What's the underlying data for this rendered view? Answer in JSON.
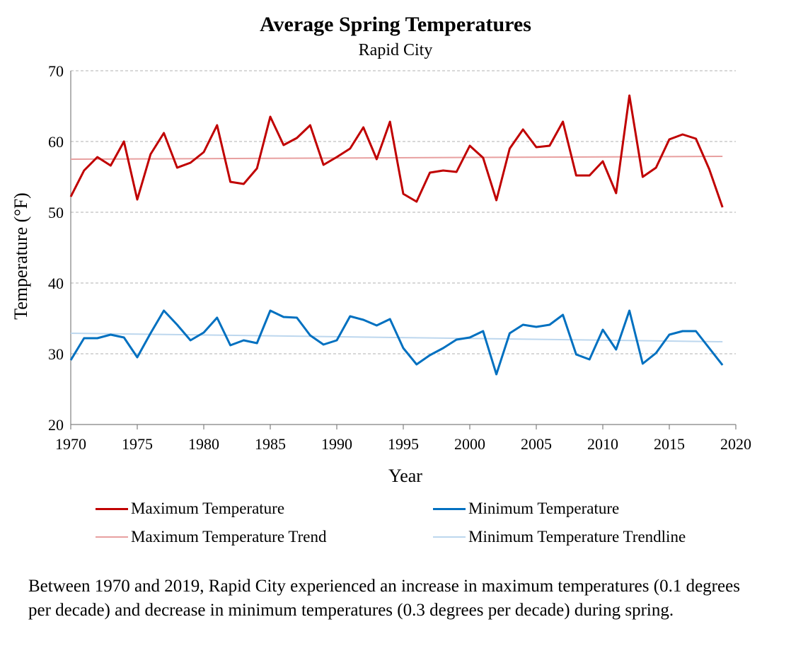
{
  "chart_data": {
    "type": "line",
    "title": "Average Spring Temperatures",
    "subtitle": "Rapid City",
    "xlabel": "Year",
    "ylabel": "Temperature (°F)",
    "xlim": [
      1970,
      2020
    ],
    "ylim": [
      20,
      70
    ],
    "x_ticks": [
      1970,
      1975,
      1980,
      1985,
      1990,
      1995,
      2000,
      2005,
      2010,
      2015,
      2020
    ],
    "y_ticks": [
      20,
      30,
      40,
      50,
      60,
      70
    ],
    "grid": "horizontal dashed",
    "legend_position": "bottom",
    "x": [
      1970,
      1971,
      1972,
      1973,
      1974,
      1975,
      1976,
      1977,
      1978,
      1979,
      1980,
      1981,
      1982,
      1983,
      1984,
      1985,
      1986,
      1987,
      1988,
      1989,
      1990,
      1991,
      1992,
      1993,
      1994,
      1995,
      1996,
      1997,
      1998,
      1999,
      2000,
      2001,
      2002,
      2003,
      2004,
      2005,
      2006,
      2007,
      2008,
      2009,
      2010,
      2011,
      2012,
      2013,
      2014,
      2015,
      2016,
      2017,
      2018,
      2019
    ],
    "series": [
      {
        "name": "Maximum Temperature",
        "color": "#c00000",
        "width": 3,
        "values": [
          52.2,
          55.9,
          57.8,
          56.6,
          60.0,
          51.8,
          58.2,
          61.2,
          56.3,
          57.0,
          58.5,
          62.3,
          54.3,
          54.0,
          56.2,
          63.5,
          59.5,
          60.5,
          62.3,
          56.7,
          57.8,
          59.0,
          62.0,
          57.5,
          62.8,
          52.6,
          51.5,
          55.6,
          55.9,
          55.7,
          59.4,
          57.7,
          51.7,
          59.0,
          61.7,
          59.2,
          59.4,
          62.8,
          55.2,
          55.2,
          57.2,
          52.7,
          66.5,
          55.0,
          56.3,
          60.3,
          61.0,
          60.4,
          56.1,
          50.7
        ]
      },
      {
        "name": "Minimum Temperature",
        "color": "#0070c0",
        "width": 3,
        "values": [
          29.1,
          32.2,
          32.2,
          32.7,
          32.3,
          29.5,
          32.9,
          36.1,
          34.1,
          31.9,
          33.0,
          35.1,
          31.2,
          31.9,
          31.5,
          36.1,
          35.2,
          35.1,
          32.6,
          31.3,
          31.9,
          35.3,
          34.8,
          34.0,
          34.9,
          30.8,
          28.5,
          29.8,
          30.8,
          32.0,
          32.3,
          33.2,
          27.1,
          32.9,
          34.1,
          33.8,
          34.1,
          35.5,
          29.9,
          29.2,
          33.4,
          30.6,
          36.1,
          28.6,
          30.1,
          32.7,
          33.2,
          33.2,
          30.8,
          28.4
        ]
      },
      {
        "name": "Maximum Temperature Trend",
        "color": "#e8a0a0",
        "width": 2,
        "values_at_endpoints": [
          57.5,
          57.9
        ]
      },
      {
        "name": "Minimum Temperature Trendline",
        "color": "#bdd7ee",
        "width": 2,
        "values_at_endpoints": [
          32.9,
          31.7
        ]
      }
    ]
  },
  "footer_note": "Between 1970 and 2019, Rapid City experienced an increase in maximum temperatures (0.1 degrees per decade) and decrease in minimum temperatures (0.3 degrees per decade) during spring."
}
